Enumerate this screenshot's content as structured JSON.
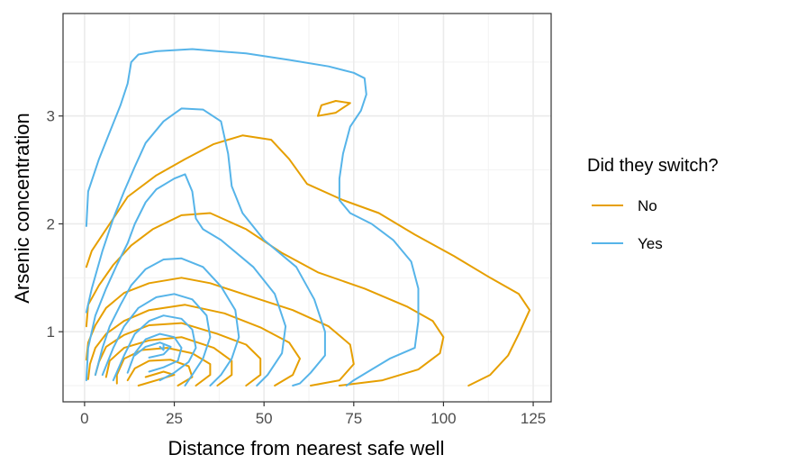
{
  "chart_data": {
    "type": "contour",
    "xlabel": "Distance from nearest safe well",
    "ylabel": "Arsenic concentration",
    "xlim": [
      -6,
      130
    ],
    "ylim": [
      0.35,
      3.95
    ],
    "x_ticks": [
      0,
      25,
      50,
      75,
      100,
      125
    ],
    "y_ticks": [
      1,
      2,
      3
    ],
    "grid": true,
    "legend": {
      "title": "Did they switch?",
      "placement": "right",
      "entries": [
        {
          "label": "No",
          "color": "#E69F00"
        },
        {
          "label": "Yes",
          "color": "#56B4E9"
        }
      ]
    },
    "series": [
      {
        "name": "No",
        "color": "#E69F00",
        "contours": [
          [
            [
              107,
              0.5
            ],
            [
              113,
              0.6
            ],
            [
              118,
              0.78
            ],
            [
              121,
              0.98
            ],
            [
              124,
              1.2
            ],
            [
              121,
              1.35
            ],
            [
              113,
              1.5
            ],
            [
              103,
              1.7
            ],
            [
              92,
              1.9
            ],
            [
              82,
              2.1
            ],
            [
              72,
              2.22
            ],
            [
              62,
              2.37
            ],
            [
              57,
              2.6
            ],
            [
              52,
              2.78
            ],
            [
              44,
              2.82
            ],
            [
              36,
              2.74
            ],
            [
              28,
              2.6
            ],
            [
              20,
              2.45
            ],
            [
              12,
              2.25
            ],
            [
              7,
              2.0
            ],
            [
              2,
              1.75
            ],
            [
              0.5,
              1.6
            ]
          ],
          [
            [
              71,
              0.5
            ],
            [
              83,
              0.55
            ],
            [
              93,
              0.65
            ],
            [
              99,
              0.8
            ],
            [
              100,
              0.95
            ],
            [
              97,
              1.1
            ],
            [
              90,
              1.23
            ],
            [
              78,
              1.4
            ],
            [
              65,
              1.55
            ],
            [
              55,
              1.73
            ],
            [
              45,
              1.95
            ],
            [
              35,
              2.1
            ],
            [
              27,
              2.08
            ],
            [
              19,
              1.95
            ],
            [
              13,
              1.8
            ],
            [
              8,
              1.62
            ],
            [
              4,
              1.43
            ],
            [
              1,
              1.25
            ],
            [
              0.5,
              1.05
            ]
          ],
          [
            [
              63,
              0.5
            ],
            [
              71,
              0.55
            ],
            [
              75,
              0.7
            ],
            [
              74,
              0.88
            ],
            [
              68,
              1.05
            ],
            [
              58,
              1.2
            ],
            [
              46,
              1.33
            ],
            [
              35,
              1.45
            ],
            [
              27,
              1.5
            ],
            [
              18,
              1.45
            ],
            [
              11,
              1.36
            ],
            [
              6,
              1.22
            ],
            [
              3,
              1.06
            ],
            [
              1,
              0.9
            ],
            [
              0.5,
              0.74
            ]
          ],
          [
            [
              53,
              0.5
            ],
            [
              58,
              0.6
            ],
            [
              60,
              0.75
            ],
            [
              57,
              0.9
            ],
            [
              49,
              1.04
            ],
            [
              39,
              1.17
            ],
            [
              28,
              1.25
            ],
            [
              18,
              1.2
            ],
            [
              11,
              1.1
            ],
            [
              6,
              0.98
            ],
            [
              3,
              0.85
            ],
            [
              1.5,
              0.7
            ],
            [
              1,
              0.56
            ]
          ],
          [
            [
              45,
              0.5
            ],
            [
              49,
              0.6
            ],
            [
              49,
              0.75
            ],
            [
              45,
              0.88
            ],
            [
              37,
              0.98
            ],
            [
              27,
              1.08
            ],
            [
              18,
              1.06
            ],
            [
              11,
              0.97
            ],
            [
              6,
              0.86
            ],
            [
              4,
              0.72
            ],
            [
              3,
              0.6
            ]
          ],
          [
            [
              37,
              0.5
            ],
            [
              41,
              0.6
            ],
            [
              41,
              0.73
            ],
            [
              36,
              0.85
            ],
            [
              27,
              0.95
            ],
            [
              18,
              0.92
            ],
            [
              11,
              0.85
            ],
            [
              7,
              0.73
            ],
            [
              6,
              0.58
            ]
          ],
          [
            [
              31,
              0.5
            ],
            [
              35,
              0.6
            ],
            [
              35,
              0.7
            ],
            [
              30,
              0.8
            ],
            [
              23,
              0.85
            ],
            [
              16,
              0.83
            ],
            [
              11,
              0.75
            ],
            [
              9,
              0.6
            ],
            [
              9,
              0.52
            ]
          ],
          [
            [
              26,
              0.5
            ],
            [
              30,
              0.58
            ],
            [
              29,
              0.68
            ],
            [
              24,
              0.74
            ],
            [
              18,
              0.73
            ],
            [
              14,
              0.66
            ],
            [
              12,
              0.55
            ]
          ],
          [
            [
              15,
              0.5
            ],
            [
              21,
              0.56
            ],
            [
              25,
              0.6
            ],
            [
              22,
              0.63
            ],
            [
              17,
              0.58
            ]
          ],
          [
            [
              65,
              3.0
            ],
            [
              66,
              3.1
            ],
            [
              70,
              3.14
            ],
            [
              74,
              3.12
            ],
            [
              70,
              3.03
            ],
            [
              65,
              3.0
            ]
          ]
        ]
      },
      {
        "name": "Yes",
        "color": "#56B4E9",
        "contours": [
          [
            [
              0.5,
              1.98
            ],
            [
              1,
              2.3
            ],
            [
              4,
              2.6
            ],
            [
              7,
              2.85
            ],
            [
              10,
              3.1
            ],
            [
              12,
              3.3
            ],
            [
              13,
              3.5
            ],
            [
              15,
              3.57
            ],
            [
              20,
              3.6
            ],
            [
              30,
              3.62
            ],
            [
              45,
              3.58
            ],
            [
              57,
              3.52
            ],
            [
              68,
              3.46
            ],
            [
              75,
              3.4
            ],
            [
              78,
              3.35
            ],
            [
              78.5,
              3.2
            ],
            [
              77,
              3.05
            ],
            [
              74,
              2.9
            ],
            [
              72,
              2.65
            ],
            [
              71,
              2.42
            ],
            [
              71,
              2.22
            ],
            [
              74,
              2.1
            ],
            [
              80,
              2.0
            ],
            [
              86,
              1.85
            ],
            [
              91,
              1.65
            ],
            [
              93,
              1.4
            ],
            [
              93,
              1.1
            ],
            [
              92,
              0.85
            ],
            [
              85,
              0.75
            ],
            [
              80,
              0.65
            ],
            [
              75,
              0.55
            ],
            [
              73,
              0.5
            ]
          ],
          [
            [
              0.5,
              1.18
            ],
            [
              2,
              1.4
            ],
            [
              5,
              1.75
            ],
            [
              8,
              2.05
            ],
            [
              11,
              2.3
            ],
            [
              14,
              2.53
            ],
            [
              17,
              2.75
            ],
            [
              22,
              2.95
            ],
            [
              27,
              3.07
            ],
            [
              33,
              3.06
            ],
            [
              38,
              2.95
            ],
            [
              40,
              2.65
            ],
            [
              41,
              2.35
            ],
            [
              44,
              2.1
            ],
            [
              50,
              1.85
            ],
            [
              59,
              1.6
            ],
            [
              64,
              1.3
            ],
            [
              67,
              1.0
            ],
            [
              67,
              0.78
            ],
            [
              63,
              0.62
            ],
            [
              60,
              0.52
            ],
            [
              58,
              0.5
            ]
          ],
          [
            [
              0.5,
              0.55
            ],
            [
              1,
              0.85
            ],
            [
              3,
              1.15
            ],
            [
              6,
              1.4
            ],
            [
              9,
              1.62
            ],
            [
              12,
              1.82
            ],
            [
              14,
              2.0
            ],
            [
              17,
              2.2
            ],
            [
              20,
              2.32
            ],
            [
              25,
              2.42
            ],
            [
              28,
              2.46
            ],
            [
              30,
              2.3
            ],
            [
              31,
              2.05
            ],
            [
              33,
              1.95
            ],
            [
              38,
              1.85
            ],
            [
              47,
              1.6
            ],
            [
              53,
              1.35
            ],
            [
              56,
              1.05
            ],
            [
              55,
              0.8
            ],
            [
              51,
              0.6
            ],
            [
              48,
              0.5
            ]
          ],
          [
            [
              3,
              0.6
            ],
            [
              5,
              0.85
            ],
            [
              7,
              1.05
            ],
            [
              10,
              1.25
            ],
            [
              13,
              1.43
            ],
            [
              17,
              1.58
            ],
            [
              22,
              1.67
            ],
            [
              27,
              1.68
            ],
            [
              33,
              1.6
            ],
            [
              38,
              1.42
            ],
            [
              42,
              1.2
            ],
            [
              43,
              0.95
            ],
            [
              41,
              0.75
            ],
            [
              38,
              0.6
            ],
            [
              35,
              0.5
            ]
          ],
          [
            [
              5,
              0.6
            ],
            [
              8,
              0.85
            ],
            [
              11,
              1.05
            ],
            [
              15,
              1.22
            ],
            [
              20,
              1.32
            ],
            [
              25,
              1.35
            ],
            [
              30,
              1.3
            ],
            [
              34,
              1.15
            ],
            [
              35,
              0.95
            ],
            [
              33,
              0.75
            ],
            [
              30,
              0.6
            ],
            [
              28,
              0.5
            ]
          ],
          [
            [
              8,
              0.55
            ],
            [
              11,
              0.78
            ],
            [
              14,
              0.98
            ],
            [
              18,
              1.1
            ],
            [
              22,
              1.15
            ],
            [
              27,
              1.12
            ],
            [
              30,
              1.02
            ],
            [
              31,
              0.85
            ],
            [
              29,
              0.72
            ],
            [
              25,
              0.62
            ],
            [
              21,
              0.55
            ]
          ],
          [
            [
              12,
              0.62
            ],
            [
              14,
              0.8
            ],
            [
              17,
              0.93
            ],
            [
              21,
              0.98
            ],
            [
              25,
              0.95
            ],
            [
              27,
              0.85
            ],
            [
              26,
              0.73
            ],
            [
              22,
              0.67
            ],
            [
              18,
              0.63
            ]
          ],
          [
            [
              14,
              0.78
            ],
            [
              17,
              0.86
            ],
            [
              21,
              0.9
            ],
            [
              24,
              0.86
            ],
            [
              22,
              0.79
            ],
            [
              18,
              0.76
            ]
          ],
          [
            [
              21,
              0.86
            ],
            [
              22,
              0.83
            ],
            [
              22,
              0.88
            ]
          ]
        ]
      }
    ]
  }
}
